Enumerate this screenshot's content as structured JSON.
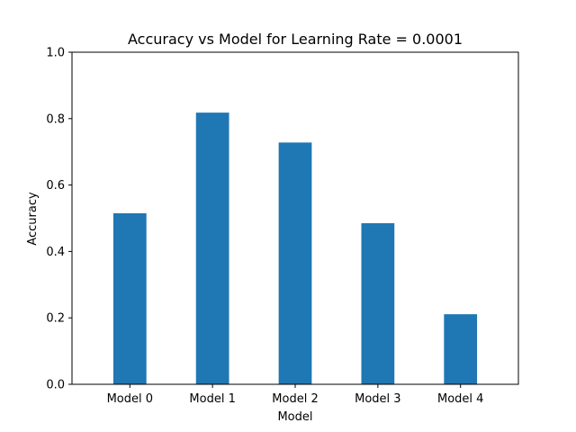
{
  "chart_data": {
    "type": "bar",
    "title": "Accuracy vs Model for Learning Rate = 0.0001",
    "xlabel": "Model",
    "ylabel": "Accuracy",
    "categories": [
      "Model 0",
      "Model 1",
      "Model 2",
      "Model 3",
      "Model 4"
    ],
    "values": [
      0.515,
      0.818,
      0.728,
      0.485,
      0.211
    ],
    "ylim": [
      0,
      1.0
    ],
    "yticks": [
      "0.0",
      "0.2",
      "0.4",
      "0.6",
      "0.8",
      "1.0"
    ],
    "grid": false,
    "bar_color": "#1f77b4"
  }
}
